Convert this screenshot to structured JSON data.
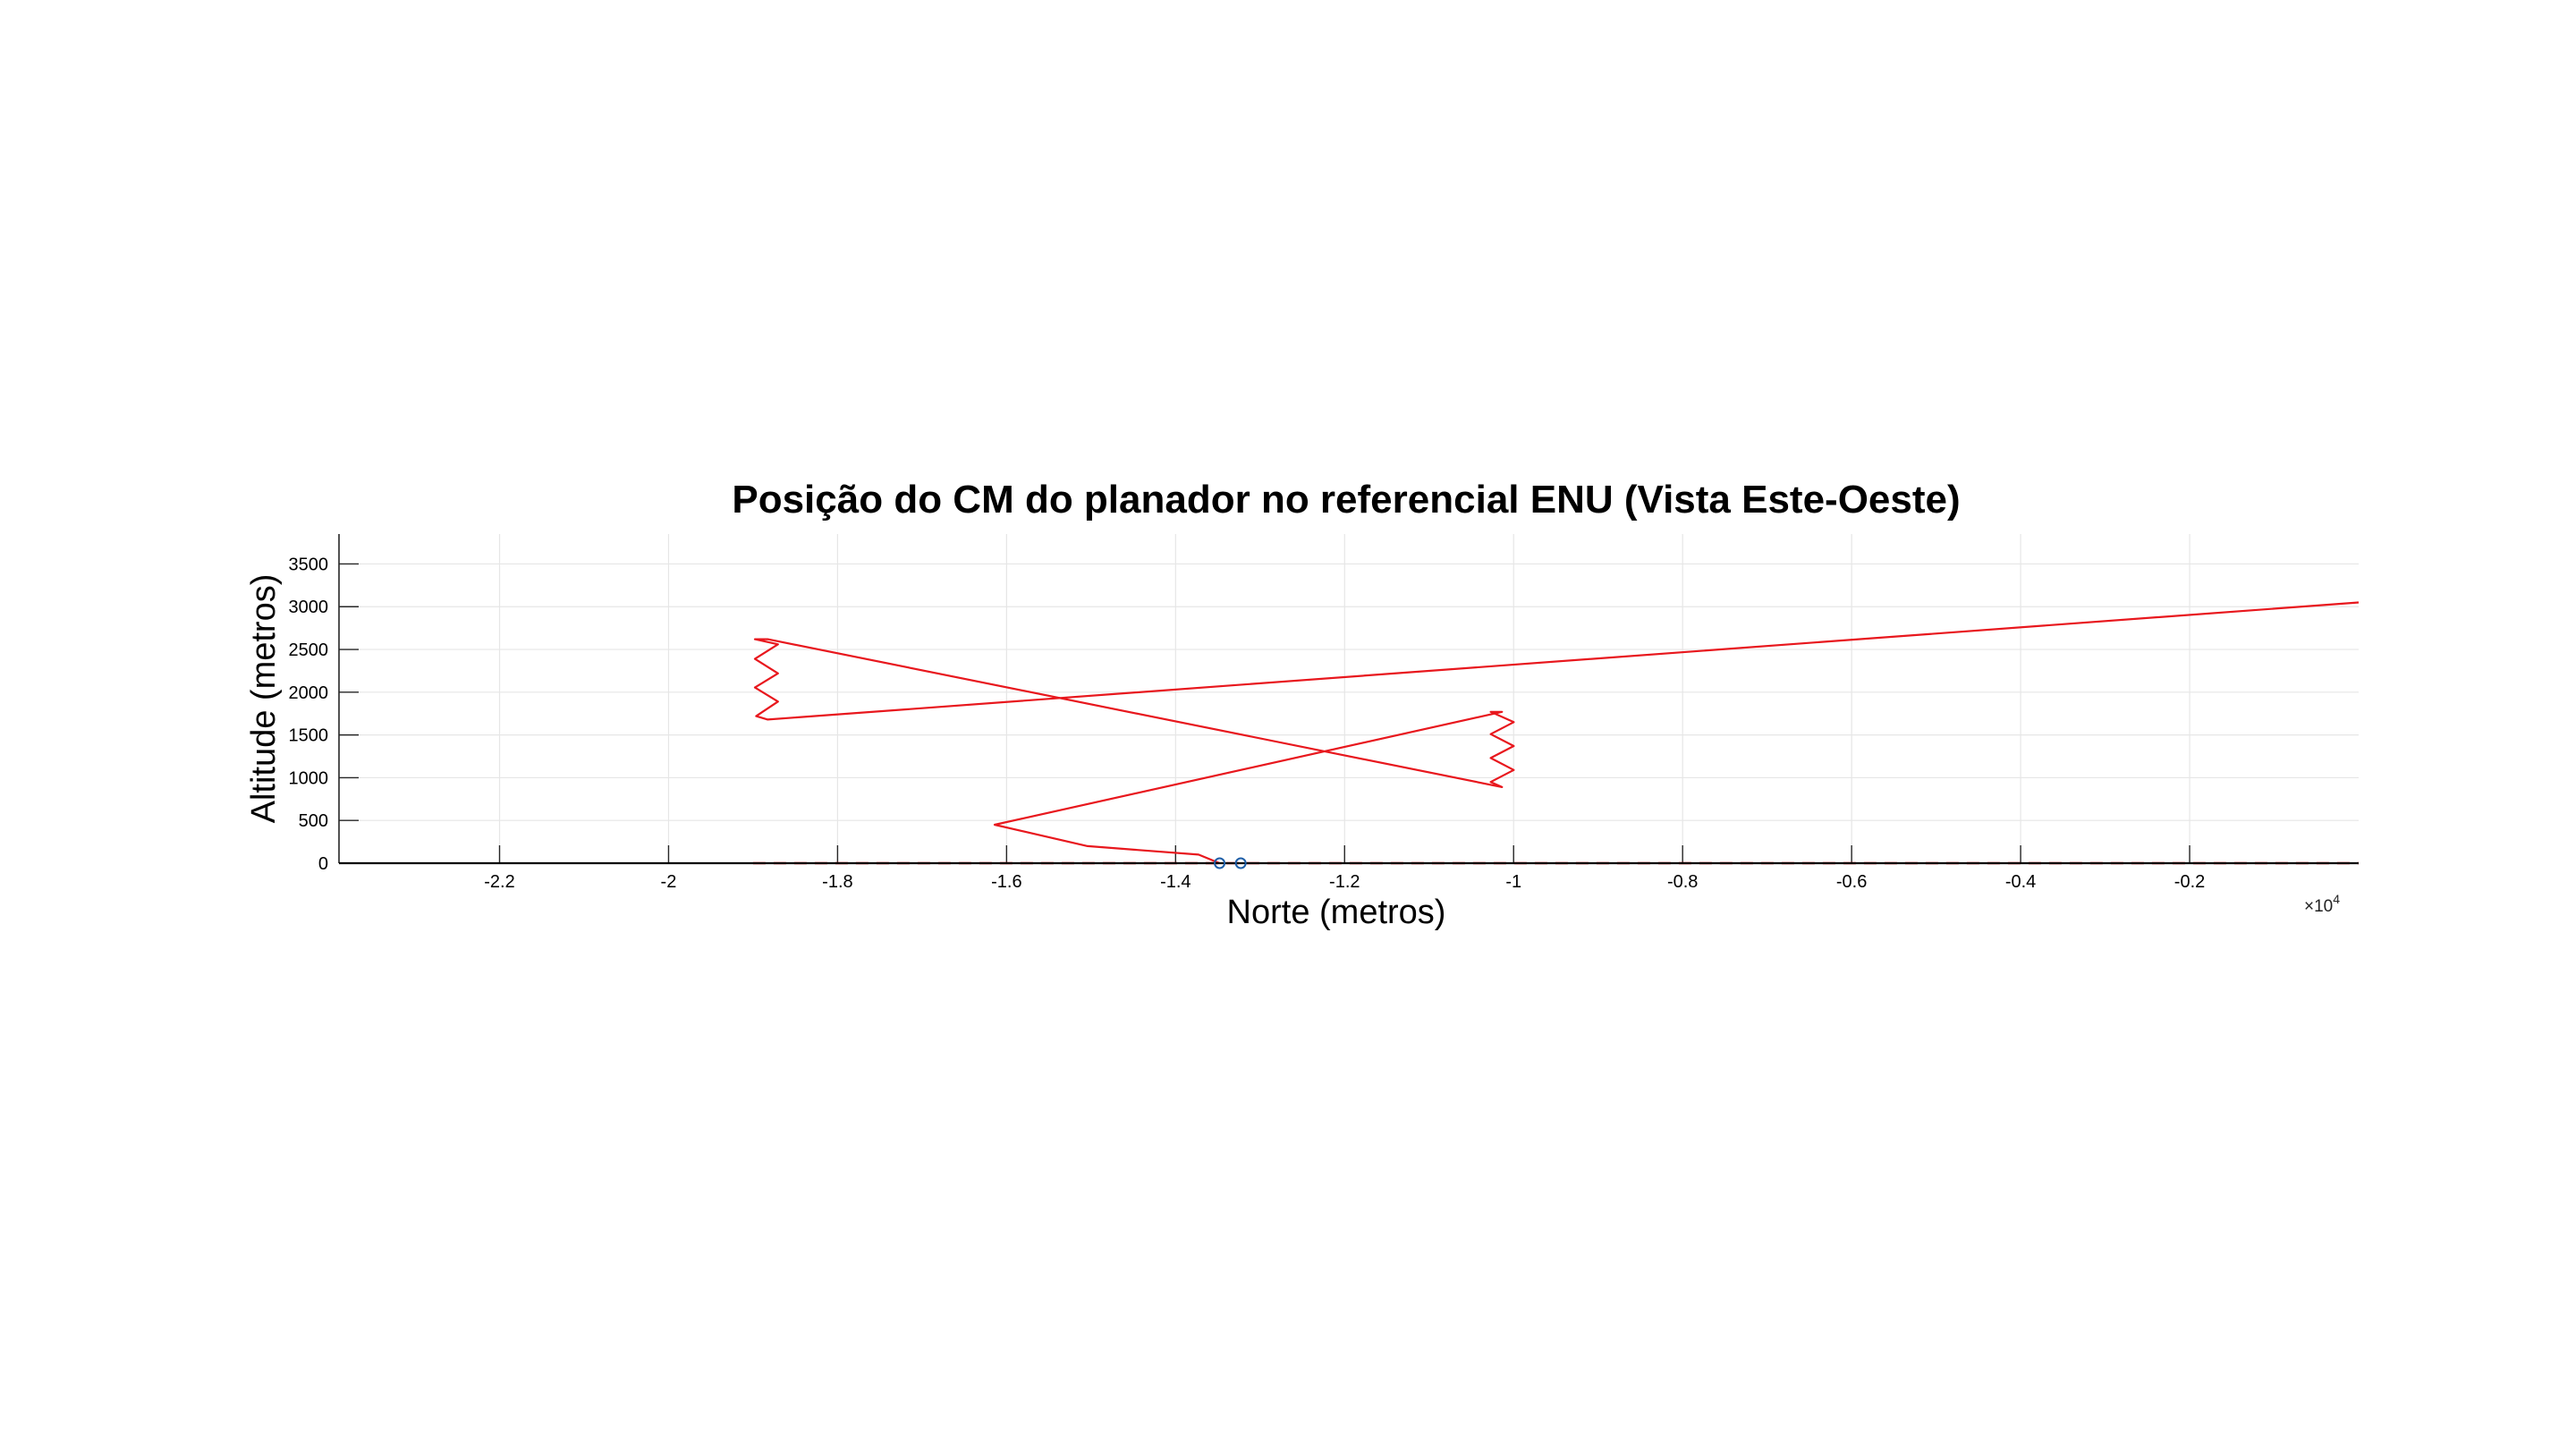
{
  "chart_data": {
    "type": "line",
    "title": "Posição do CM do planador no referencial ENU (Vista Este-Oeste)",
    "xlabel": "Norte (metros)",
    "ylabel": "Altitude (metros)",
    "x_exponent_base": "×10",
    "x_exponent_power": "4",
    "xlim": [
      -2.39,
      0.0
    ],
    "ylim": [
      0,
      3500
    ],
    "grid": true,
    "legend": "none",
    "x_ticks": [
      {
        "value": -2.2,
        "label": "-2.2"
      },
      {
        "value": -2.0,
        "label": "-2"
      },
      {
        "value": -1.8,
        "label": "-1.8"
      },
      {
        "value": -1.6,
        "label": "-1.6"
      },
      {
        "value": -1.4,
        "label": "-1.4"
      },
      {
        "value": -1.2,
        "label": "-1.2"
      },
      {
        "value": -1.0,
        "label": "-1"
      },
      {
        "value": -0.8,
        "label": "-0.8"
      },
      {
        "value": -0.6,
        "label": "-0.6"
      },
      {
        "value": -0.4,
        "label": "-0.4"
      },
      {
        "value": -0.2,
        "label": "-0.2"
      }
    ],
    "y_ticks": [
      {
        "value": 0,
        "label": "0"
      },
      {
        "value": 500,
        "label": "500"
      },
      {
        "value": 1000,
        "label": "1000"
      },
      {
        "value": 1500,
        "label": "1500"
      },
      {
        "value": 2000,
        "label": "2000"
      },
      {
        "value": 2500,
        "label": "2500"
      },
      {
        "value": 3000,
        "label": "3000"
      },
      {
        "value": 3500,
        "label": "3500"
      }
    ],
    "series": [
      {
        "color": "#e8171d",
        "style": "solid",
        "x": [
          0.0,
          -1.8827,
          -1.8963,
          -1.8705,
          -1.8978,
          -1.8705,
          -1.8978,
          -1.8705,
          -1.8978,
          -1.8827,
          -1.0137,
          -1.0271,
          -0.9998,
          -1.0271,
          -0.9998,
          -1.0271,
          -0.9998,
          -1.0271,
          -1.0137,
          -1.6142,
          -1.5042,
          -1.3728,
          -1.3479
        ],
        "y": [
          3050,
          1680,
          1720,
          1890,
          2055,
          2220,
          2390,
          2560,
          2620,
          2620,
          890,
          950,
          1090,
          1230,
          1370,
          1510,
          1650,
          1770,
          1770,
          450,
          200,
          100,
          0
        ]
      },
      {
        "color": "#e8171d",
        "style": "dashed",
        "x": [
          -1.9,
          0.0
        ],
        "y": [
          0,
          0
        ]
      },
      {
        "color": "#000000",
        "style": "solid",
        "x": [
          -2.39,
          0.0
        ],
        "y": [
          0,
          0
        ]
      }
    ],
    "markers": [
      {
        "x": -1.3479,
        "y": 0,
        "color": "#1f5fa8"
      },
      {
        "x": -1.3229,
        "y": 0,
        "color": "#1f5fa8"
      }
    ]
  }
}
